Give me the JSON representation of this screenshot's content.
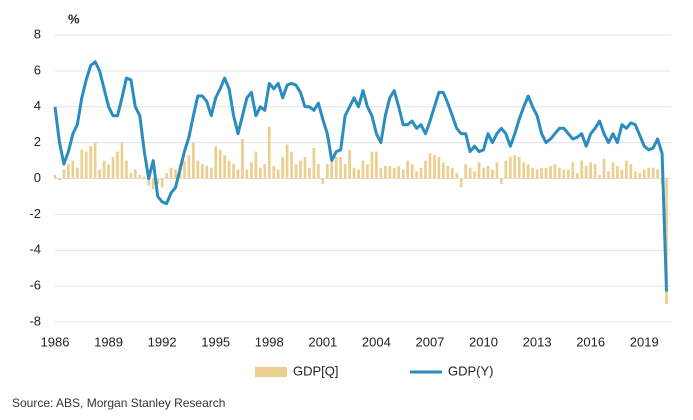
{
  "chart_data": {
    "type": "bar-line",
    "y_label": "%",
    "source": "Source: ABS, Morgan Stanley Research",
    "x": [
      1986,
      1986.25,
      1986.5,
      1986.75,
      1987,
      1987.25,
      1987.5,
      1987.75,
      1988,
      1988.25,
      1988.5,
      1988.75,
      1989,
      1989.25,
      1989.5,
      1989.75,
      1990,
      1990.25,
      1990.5,
      1990.75,
      1991,
      1991.25,
      1991.5,
      1991.75,
      1992,
      1992.25,
      1992.5,
      1992.75,
      1993,
      1993.25,
      1993.5,
      1993.75,
      1994,
      1994.25,
      1994.5,
      1994.75,
      1995,
      1995.25,
      1995.5,
      1995.75,
      1996,
      1996.25,
      1996.5,
      1996.75,
      1997,
      1997.25,
      1997.5,
      1997.75,
      1998,
      1998.25,
      1998.5,
      1998.75,
      1999,
      1999.25,
      1999.5,
      1999.75,
      2000,
      2000.25,
      2000.5,
      2000.75,
      2001,
      2001.25,
      2001.5,
      2001.75,
      2002,
      2002.25,
      2002.5,
      2002.75,
      2003,
      2003.25,
      2003.5,
      2003.75,
      2004,
      2004.25,
      2004.5,
      2004.75,
      2005,
      2005.25,
      2005.5,
      2005.75,
      2006,
      2006.25,
      2006.5,
      2006.75,
      2007,
      2007.25,
      2007.5,
      2007.75,
      2008,
      2008.25,
      2008.5,
      2008.75,
      2009,
      2009.25,
      2009.5,
      2009.75,
      2010,
      2010.25,
      2010.5,
      2010.75,
      2011,
      2011.25,
      2011.5,
      2011.75,
      2012,
      2012.25,
      2012.5,
      2012.75,
      2013,
      2013.25,
      2013.5,
      2013.75,
      2014,
      2014.25,
      2014.5,
      2014.75,
      2015,
      2015.25,
      2015.5,
      2015.75,
      2016,
      2016.25,
      2016.5,
      2016.75,
      2017,
      2017.25,
      2017.5,
      2017.75,
      2018,
      2018.25,
      2018.5,
      2018.75,
      2019,
      2019.25,
      2019.5,
      2019.75,
      2020,
      2020.25
    ],
    "series": [
      {
        "name": "GDP[Q]",
        "kind": "bar",
        "color": "#ecce8f",
        "values": [
          0.2,
          -0.1,
          0.5,
          0.8,
          1.0,
          0.6,
          1.6,
          1.5,
          1.8,
          2.0,
          0.5,
          1.0,
          0.8,
          1.2,
          1.5,
          2.0,
          1.0,
          0.3,
          0.5,
          0.2,
          0.1,
          -0.4,
          -0.6,
          -0.3,
          -0.5,
          0.3,
          0.6,
          0.5,
          0.8,
          1.0,
          1.3,
          2.0,
          1.0,
          0.8,
          0.7,
          0.6,
          1.8,
          1.6,
          1.3,
          1.0,
          0.8,
          0.5,
          2.2,
          0.5,
          0.9,
          1.5,
          0.6,
          0.8,
          2.9,
          0.7,
          0.5,
          1.2,
          1.9,
          1.5,
          0.8,
          1.0,
          1.2,
          0.6,
          1.7,
          0.8,
          -0.3,
          0.8,
          0.9,
          1.2,
          1.2,
          0.8,
          1.6,
          0.6,
          0.5,
          1.0,
          0.8,
          1.5,
          1.5,
          0.6,
          0.7,
          0.7,
          0.6,
          0.7,
          0.5,
          1.0,
          0.8,
          0.4,
          0.6,
          1.0,
          1.4,
          1.3,
          1.2,
          0.9,
          0.7,
          0.6,
          0.3,
          -0.5,
          0.8,
          0.6,
          0.4,
          0.9,
          0.6,
          0.7,
          0.5,
          0.9,
          -0.3,
          1.0,
          1.2,
          1.3,
          1.2,
          0.9,
          0.8,
          0.6,
          0.5,
          0.6,
          0.6,
          0.7,
          0.8,
          0.6,
          0.5,
          0.5,
          0.9,
          0.3,
          1.0,
          0.7,
          0.9,
          0.8,
          0.2,
          1.1,
          0.4,
          0.9,
          0.7,
          0.5,
          1.0,
          0.8,
          0.4,
          0.3,
          0.5,
          0.6,
          0.6,
          0.5,
          -0.3,
          -7.0
        ]
      },
      {
        "name": "GDP(Y)",
        "kind": "line",
        "color": "#2b8cc0",
        "values": [
          4.0,
          2.0,
          0.8,
          1.5,
          2.5,
          3.0,
          4.5,
          5.5,
          6.3,
          6.5,
          6.0,
          5.0,
          4.0,
          3.5,
          3.5,
          4.5,
          5.6,
          5.5,
          4.0,
          3.5,
          1.5,
          0.0,
          1.0,
          -1.0,
          -1.3,
          -1.4,
          -0.8,
          -0.5,
          0.5,
          1.5,
          2.3,
          3.5,
          4.6,
          4.6,
          4.3,
          3.5,
          4.5,
          5.0,
          5.6,
          5.0,
          3.5,
          2.5,
          3.5,
          4.5,
          4.8,
          3.5,
          4.0,
          3.8,
          5.3,
          5.0,
          5.3,
          4.5,
          5.2,
          5.3,
          5.2,
          4.8,
          4.0,
          4.0,
          3.8,
          4.2,
          3.3,
          2.5,
          1.0,
          1.5,
          1.6,
          3.5,
          4.0,
          4.5,
          4.0,
          4.9,
          4.0,
          3.5,
          2.5,
          2.0,
          3.5,
          4.5,
          4.9,
          4.0,
          3.0,
          3.0,
          3.2,
          2.8,
          3.0,
          2.5,
          3.2,
          4.0,
          4.8,
          4.8,
          4.2,
          3.5,
          2.8,
          2.5,
          2.5,
          1.5,
          1.8,
          1.5,
          1.6,
          2.5,
          2.0,
          2.5,
          2.8,
          2.5,
          1.8,
          2.5,
          3.3,
          4.0,
          4.6,
          4.0,
          3.5,
          2.5,
          2.0,
          2.2,
          2.5,
          2.8,
          2.8,
          2.5,
          2.2,
          2.3,
          2.5,
          1.8,
          2.5,
          2.8,
          3.2,
          2.5,
          2.0,
          2.5,
          2.0,
          3.0,
          2.8,
          3.1,
          3.0,
          2.4,
          1.8,
          1.6,
          1.7,
          2.2,
          1.4,
          -6.3
        ]
      }
    ],
    "xlim": [
      1986,
      2020.5
    ],
    "xticks": [
      1986,
      1989,
      1992,
      1995,
      1998,
      2001,
      2004,
      2007,
      2010,
      2013,
      2016,
      2019
    ],
    "ylim": [
      -8,
      8
    ],
    "yticks": [
      -8,
      -6,
      -4,
      -2,
      0,
      2,
      4,
      6,
      8
    ],
    "grid": true,
    "legend": "bottom"
  }
}
